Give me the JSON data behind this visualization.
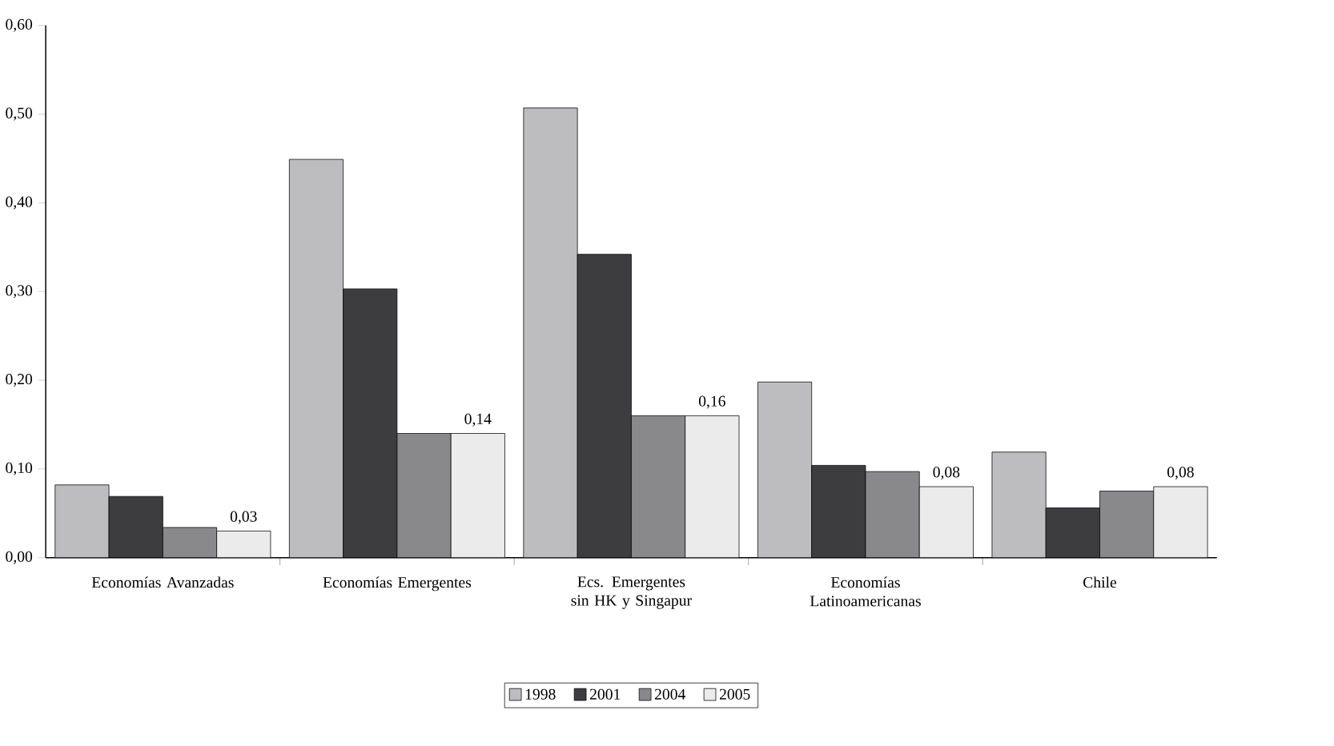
{
  "chart_data": {
    "type": "bar",
    "categories": [
      "Economías Avanzadas",
      "Economías Emergentes",
      "Ecs. Emergentes sin HK y Singapur",
      "Economías Latinoamericanas",
      "Chile"
    ],
    "series": [
      {
        "name": "1998",
        "color": "#bdbdbf",
        "values": [
          0.082,
          0.449,
          0.507,
          0.198,
          0.119
        ]
      },
      {
        "name": "2001",
        "color": "#3d3d3f",
        "values": [
          0.069,
          0.303,
          0.342,
          0.104,
          0.056
        ]
      },
      {
        "name": "2004",
        "color": "#89898b",
        "values": [
          0.034,
          0.14,
          0.16,
          0.097,
          0.075
        ]
      },
      {
        "name": "2005",
        "color": "#ebebeb",
        "values": [
          0.03,
          0.14,
          0.16,
          0.08,
          0.08
        ],
        "value_labels": [
          "0,03",
          "0,14",
          "0,16",
          "0,08",
          "0,08"
        ]
      }
    ],
    "ylim": [
      0,
      0.6
    ],
    "yticks": [
      {
        "value": 0,
        "label": "0,00"
      },
      {
        "value": 0.1,
        "label": "0,10"
      },
      {
        "value": 0.2,
        "label": "0,20"
      },
      {
        "value": 0.3,
        "label": "0,30"
      },
      {
        "value": 0.4,
        "label": "0,40"
      },
      {
        "value": 0.5,
        "label": "0,50"
      },
      {
        "value": 0.6,
        "label": "0,60"
      }
    ],
    "grid": false,
    "legend": "bottom"
  }
}
